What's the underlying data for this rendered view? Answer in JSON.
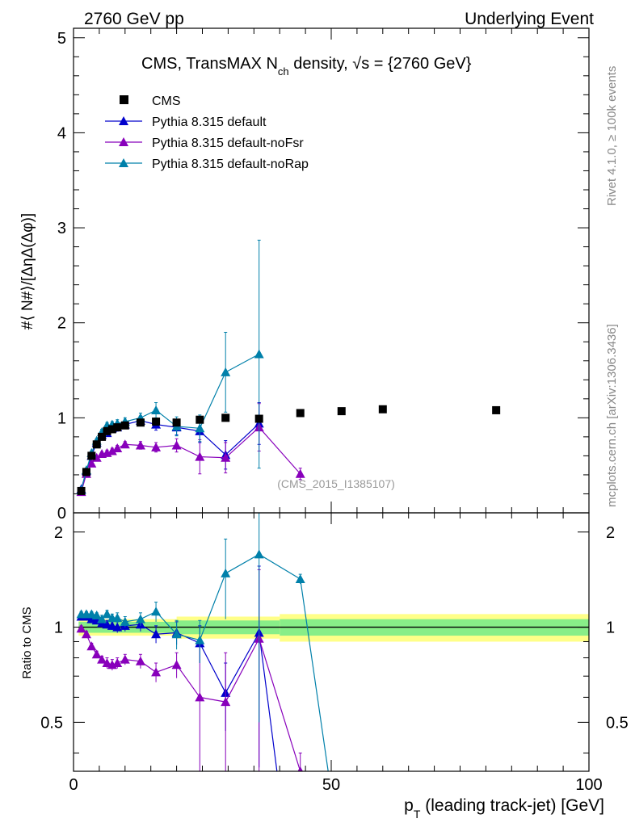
{
  "header": {
    "left": "2760 GeV pp",
    "right": "Underlying Event"
  },
  "side": {
    "rivet": "Rivet 4.1.0, ≥ 100k events",
    "mcplots": "mcplots.cern.ch [arXiv:1306.3436]"
  },
  "chart_data": {
    "type": "scatter",
    "title": "CMS, TransMAX N_ch density, √s = {2760 GeV}",
    "title_parts": {
      "main": "CMS, TransMAX N",
      "sub": "ch",
      "rest": " density, ",
      "sqrt": "√s",
      "energy": " = {2760 GeV}"
    },
    "watermark": "(CMS_2015_I1385107)",
    "xlabel": "p_T (leading track-jet) [GeV]",
    "xlabel_parts": {
      "p": "p",
      "sub": "T",
      "rest": " (leading track-jet) [GeV]"
    },
    "ylabel": "#⟨ N#⟩/[ΔηΔ(Δφ)]",
    "ratio_ylabel": "Ratio to CMS",
    "xlim": [
      0,
      100
    ],
    "ylim": [
      0,
      5.1
    ],
    "ratio_ylim": [
      0.35,
      2.3
    ],
    "x_ticks": [
      "0",
      "50",
      "100"
    ],
    "y_ticks": [
      "0",
      "1",
      "2",
      "3",
      "4",
      "5"
    ],
    "ratio_ticks": [
      "0.5",
      "1",
      "2"
    ],
    "legend": [
      "CMS",
      "Pythia 8.315 default",
      "Pythia 8.315 default-noFsr",
      "Pythia 8.315 default-noRap"
    ],
    "data": {
      "name": "CMS",
      "x": [
        1.5,
        2.5,
        3.5,
        4.5,
        5.5,
        6.5,
        7.5,
        8.5,
        10,
        13,
        16,
        20,
        24.5,
        29.5,
        36,
        44,
        52,
        60,
        82
      ],
      "y": [
        0.23,
        0.43,
        0.6,
        0.72,
        0.8,
        0.86,
        0.88,
        0.9,
        0.92,
        0.95,
        0.96,
        0.95,
        0.98,
        1.0,
        0.99,
        1.05,
        1.07,
        1.09,
        1.08
      ]
    },
    "series": [
      {
        "name": "Pythia 8.315 default",
        "color": "#0000cc",
        "x": [
          1.5,
          2.5,
          3.5,
          4.5,
          5.5,
          6.5,
          7.5,
          8.5,
          10,
          13,
          16,
          20,
          24.5,
          29.5,
          36
        ],
        "y": [
          0.25,
          0.44,
          0.6,
          0.74,
          0.82,
          0.84,
          0.89,
          0.9,
          0.93,
          0.97,
          0.93,
          0.9,
          0.86,
          0.61,
          0.94
        ],
        "err": [
          0.02,
          0.02,
          0.02,
          0.02,
          0.03,
          0.03,
          0.03,
          0.04,
          0.04,
          0.05,
          0.06,
          0.08,
          0.12,
          0.15,
          0.22
        ],
        "ratio": [
          1.08,
          1.08,
          1.06,
          1.05,
          1.03,
          1.02,
          1.01,
          1.0,
          1.01,
          1.02,
          0.95,
          0.96,
          0.89,
          0.62,
          0.96
        ],
        "ratio_err": [
          0.02,
          0.02,
          0.02,
          0.02,
          0.03,
          0.03,
          0.03,
          0.04,
          0.04,
          0.05,
          0.06,
          0.08,
          0.12,
          0.15,
          0.6
        ],
        "ratio_tail": [
          40,
          0.3
        ]
      },
      {
        "name": "Pythia 8.315 default-noFsr",
        "color": "#8800bb",
        "x": [
          1.5,
          2.5,
          3.5,
          4.5,
          5.5,
          6.5,
          7.5,
          8.5,
          10,
          13,
          16,
          20,
          24.5,
          29.5,
          36,
          44
        ],
        "y": [
          0.22,
          0.41,
          0.52,
          0.58,
          0.62,
          0.63,
          0.65,
          0.68,
          0.72,
          0.71,
          0.69,
          0.71,
          0.59,
          0.58,
          0.9,
          0.41
        ],
        "err": [
          0.02,
          0.02,
          0.02,
          0.02,
          0.02,
          0.03,
          0.03,
          0.03,
          0.03,
          0.04,
          0.05,
          0.07,
          0.18,
          0.16,
          0.25,
          0.06
        ],
        "ratio": [
          0.99,
          0.95,
          0.87,
          0.82,
          0.79,
          0.77,
          0.76,
          0.77,
          0.79,
          0.78,
          0.72,
          0.76,
          0.6,
          0.58,
          0.92,
          0.35
        ],
        "ratio_err": [
          0.02,
          0.02,
          0.02,
          0.02,
          0.02,
          0.03,
          0.03,
          0.03,
          0.03,
          0.04,
          0.05,
          0.07,
          0.3,
          0.25,
          0.6,
          0.05
        ]
      },
      {
        "name": "Pythia 8.315 default-noRap",
        "color": "#0080aa",
        "x": [
          1.5,
          2.5,
          3.5,
          4.5,
          5.5,
          6.5,
          7.5,
          8.5,
          10,
          13,
          16,
          20,
          24.5,
          29.5,
          36
        ],
        "y": [
          0.24,
          0.45,
          0.63,
          0.76,
          0.85,
          0.92,
          0.93,
          0.94,
          0.96,
          1.0,
          1.08,
          0.91,
          0.89,
          1.48,
          1.67
        ],
        "err": [
          0.02,
          0.02,
          0.02,
          0.02,
          0.03,
          0.03,
          0.03,
          0.04,
          0.04,
          0.05,
          0.08,
          0.1,
          0.14,
          0.42,
          1.2
        ],
        "ratio": [
          1.1,
          1.1,
          1.1,
          1.09,
          1.06,
          1.1,
          1.07,
          1.07,
          1.04,
          1.06,
          1.12,
          0.95,
          0.91,
          1.48,
          1.7,
          1.42
        ],
        "ratio_err": [
          0.02,
          0.02,
          0.02,
          0.02,
          0.03,
          0.03,
          0.03,
          0.04,
          0.04,
          0.05,
          0.08,
          0.1,
          0.14,
          0.42,
          1.2,
          0.05
        ],
        "ratio_x": [
          1.5,
          2.5,
          3.5,
          4.5,
          5.5,
          6.5,
          7.5,
          8.5,
          10,
          13,
          16,
          20,
          24.5,
          29.5,
          36,
          44
        ],
        "ratio_tail": [
          50,
          0.3
        ]
      }
    ],
    "ratio_band": {
      "x_edges": [
        1,
        20,
        40,
        100
      ],
      "inner": [
        0.04,
        0.05,
        0.06
      ],
      "outer": [
        0.06,
        0.08,
        0.1
      ]
    }
  }
}
